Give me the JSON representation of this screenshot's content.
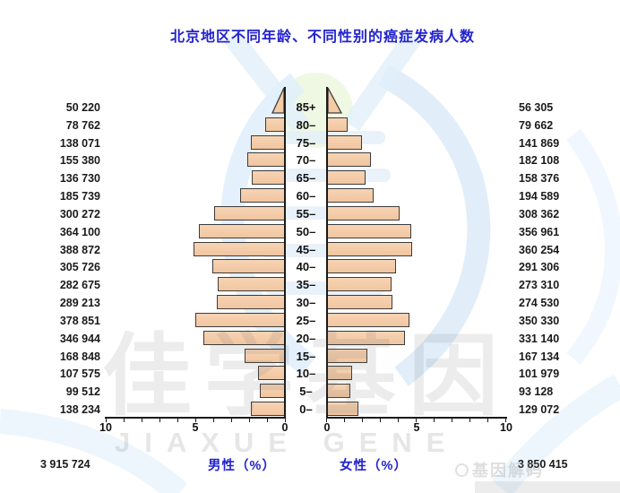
{
  "title": "北京地区不同年龄、不同性别的癌症发病人数",
  "chart_data": {
    "type": "bar",
    "variant": "population_pyramid",
    "title": "北京地区不同年龄、不同性别的癌症发病人数",
    "categories": [
      "85+",
      "80–",
      "75–",
      "70–",
      "65–",
      "60–",
      "55–",
      "50–",
      "45–",
      "40–",
      "35–",
      "30–",
      "25–",
      "20–",
      "15–",
      "10–",
      "5–",
      "0–"
    ],
    "series": [
      {
        "name": "男性",
        "side": "left",
        "axis_label": "男性（%）",
        "total_display": "3 915 724",
        "values": [
          50220,
          78762,
          138071,
          155380,
          136730,
          185739,
          300272,
          364100,
          388872,
          305726,
          282675,
          289213,
          378851,
          346944,
          168848,
          107575,
          99512,
          138234
        ],
        "value_displays": [
          "50 220",
          "78 762",
          "138 071",
          "155 380",
          "136 730",
          "185 739",
          "300 272",
          "364 100",
          "388 872",
          "305 726",
          "282 675",
          "289 213",
          "378 851",
          "346 944",
          "168 848",
          "107 575",
          "99 512",
          "138 234"
        ]
      },
      {
        "name": "女性",
        "side": "right",
        "axis_label": "女性（%）",
        "total_display": "3 850 415",
        "values": [
          56305,
          79662,
          141869,
          182108,
          158376,
          194589,
          308362,
          356961,
          360254,
          291306,
          273310,
          274530,
          350330,
          331140,
          167134,
          101979,
          93128,
          129072
        ],
        "value_displays": [
          "56 305",
          "79 662",
          "141 869",
          "182 108",
          "158 376",
          "194 589",
          "308 362",
          "356 961",
          "360 254",
          "291 306",
          "273 310",
          "274 530",
          "350 330",
          "331 140",
          "167 134",
          "101 979",
          "93 128",
          "129 072"
        ]
      }
    ],
    "x_axis": {
      "unit": "%",
      "max": 10,
      "tick_step": 1,
      "left_tick_labels": [
        "10",
        "5",
        "0"
      ],
      "right_tick_labels": [
        "0",
        "5",
        "10"
      ]
    },
    "legend_position": "none",
    "grid": false
  },
  "watermark": {
    "brand_cn": "佳学基因",
    "brand_en": "JIAXUE GENE",
    "corner_text": "基因解码"
  },
  "colors": {
    "bar_fill": "#F5CBA6",
    "bar_border": "#3C3C3C",
    "axis": "#1A1A1A",
    "title_blue": "#2323CD",
    "watermark_blue": "#DCEBF8",
    "watermark_green": "#EDF7E0"
  }
}
